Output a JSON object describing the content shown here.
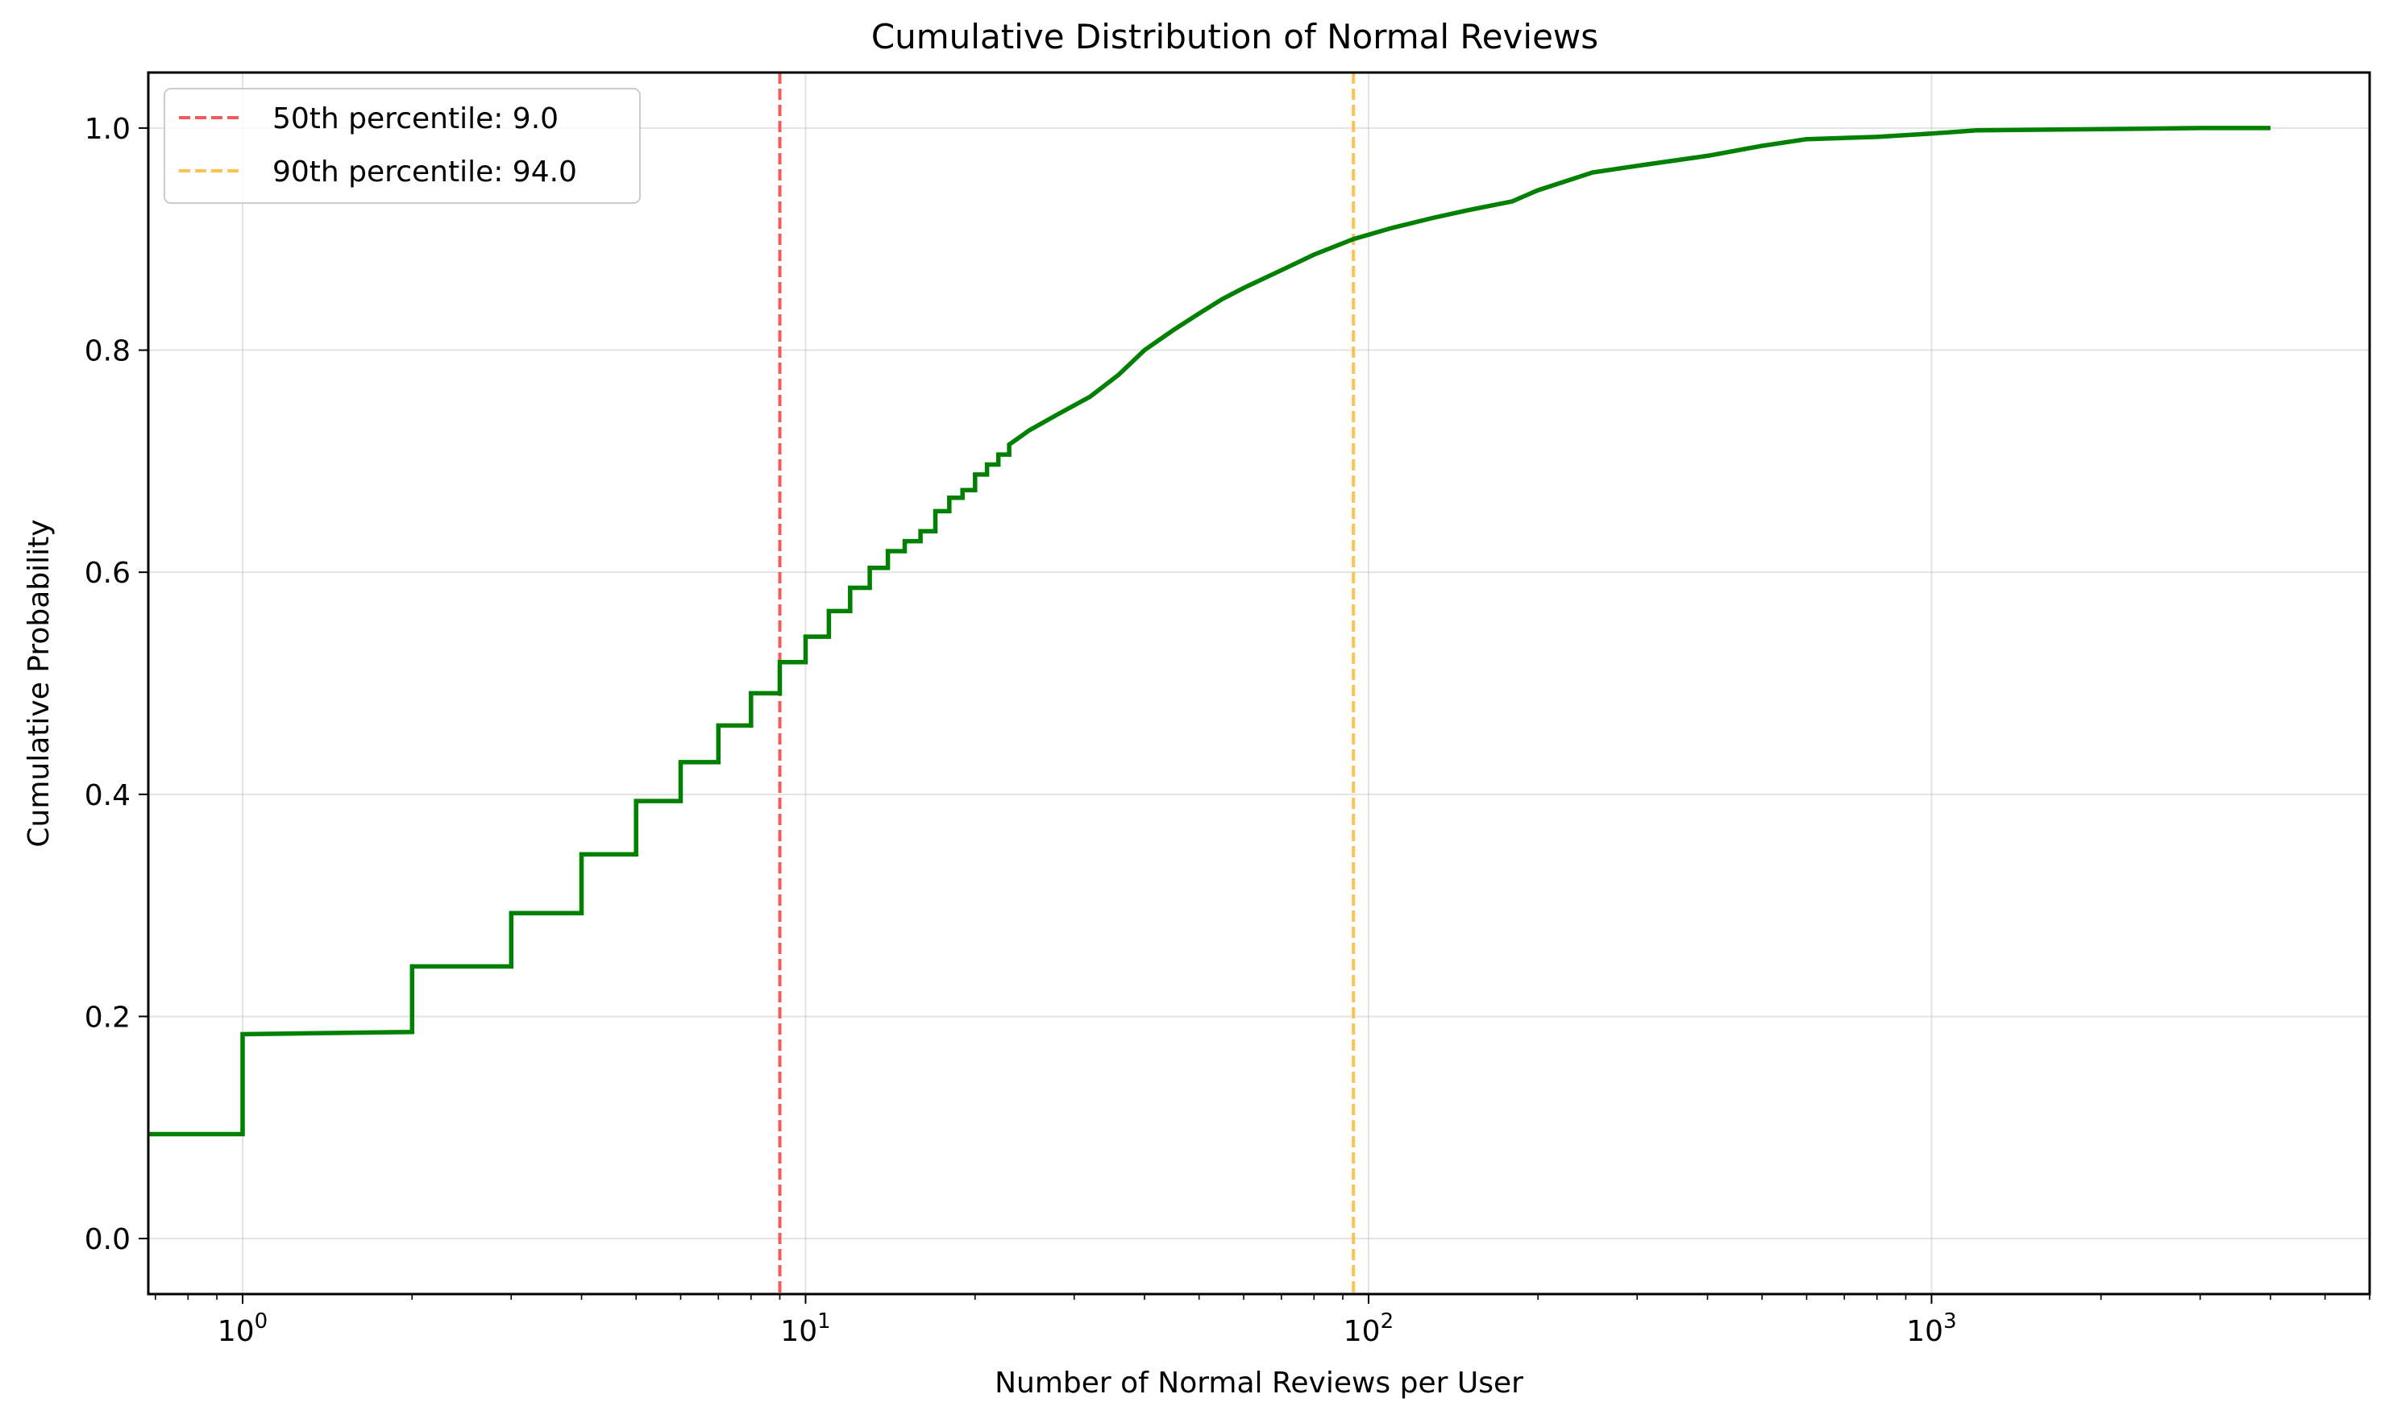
{
  "chart_data": {
    "type": "line",
    "title": "Cumulative Distribution of Normal Reviews",
    "xlabel": "Number of Normal Reviews per User",
    "ylabel": "Cumulative Probability",
    "xscale": "log",
    "xlim": [
      0.68,
      6000
    ],
    "ylim": [
      -0.05,
      1.05
    ],
    "grid": true,
    "legend_position": "top-left",
    "x_ticks": [
      {
        "value": 1,
        "base": "10",
        "exp": "0"
      },
      {
        "value": 10,
        "base": "10",
        "exp": "1"
      },
      {
        "value": 100,
        "base": "10",
        "exp": "2"
      },
      {
        "value": 1000,
        "base": "10",
        "exp": "3"
      }
    ],
    "y_ticks": [
      "0.0",
      "0.2",
      "0.4",
      "0.6",
      "0.8",
      "1.0"
    ],
    "series": [
      {
        "color": "#008000",
        "style": "step",
        "points": [
          [
            0.68,
            0.094
          ],
          [
            1,
            0.094
          ],
          [
            1,
            0.184
          ],
          [
            2,
            0.186
          ],
          [
            2,
            0.245
          ],
          [
            3,
            0.245
          ],
          [
            3,
            0.293
          ],
          [
            4,
            0.293
          ],
          [
            4,
            0.346
          ],
          [
            5,
            0.346
          ],
          [
            5,
            0.394
          ],
          [
            6,
            0.394
          ],
          [
            6,
            0.429
          ],
          [
            7,
            0.429
          ],
          [
            7,
            0.462
          ],
          [
            8,
            0.462
          ],
          [
            8,
            0.491
          ],
          [
            9,
            0.491
          ],
          [
            9,
            0.519
          ],
          [
            10,
            0.519
          ],
          [
            10,
            0.542
          ],
          [
            11,
            0.542
          ],
          [
            11,
            0.565
          ],
          [
            12,
            0.565
          ],
          [
            12,
            0.586
          ],
          [
            13,
            0.586
          ],
          [
            13,
            0.604
          ],
          [
            14,
            0.604
          ],
          [
            14,
            0.619
          ],
          [
            15,
            0.619
          ],
          [
            15,
            0.628
          ],
          [
            16,
            0.628
          ],
          [
            16,
            0.637
          ],
          [
            17,
            0.637
          ],
          [
            17,
            0.655
          ],
          [
            18,
            0.655
          ],
          [
            18,
            0.667
          ],
          [
            19,
            0.667
          ],
          [
            19,
            0.674
          ],
          [
            20,
            0.674
          ],
          [
            20,
            0.688
          ],
          [
            21,
            0.688
          ],
          [
            21,
            0.697
          ],
          [
            22,
            0.697
          ],
          [
            22,
            0.706
          ],
          [
            23,
            0.706
          ],
          [
            23,
            0.715
          ],
          [
            25,
            0.728
          ],
          [
            28,
            0.742
          ],
          [
            32,
            0.758
          ],
          [
            36,
            0.778
          ],
          [
            40,
            0.8
          ],
          [
            45,
            0.818
          ],
          [
            50,
            0.833
          ],
          [
            55,
            0.846
          ],
          [
            60,
            0.856
          ],
          [
            70,
            0.872
          ],
          [
            80,
            0.886
          ],
          [
            94,
            0.9
          ],
          [
            110,
            0.91
          ],
          [
            130,
            0.919
          ],
          [
            150,
            0.926
          ],
          [
            180,
            0.934
          ],
          [
            200,
            0.944
          ],
          [
            250,
            0.96
          ],
          [
            300,
            0.966
          ],
          [
            400,
            0.975
          ],
          [
            500,
            0.984
          ],
          [
            600,
            0.99
          ],
          [
            800,
            0.992
          ],
          [
            1000,
            0.995
          ],
          [
            1200,
            0.998
          ],
          [
            2000,
            0.999
          ],
          [
            3000,
            1.0
          ],
          [
            4000,
            1.0
          ]
        ]
      }
    ],
    "reference_lines": [
      {
        "label": "50th percentile: 9.0",
        "x": 9.0,
        "color": "#f04040"
      },
      {
        "label": "90th percentile: 94.0",
        "x": 94.0,
        "color": "#ffb733"
      }
    ]
  }
}
